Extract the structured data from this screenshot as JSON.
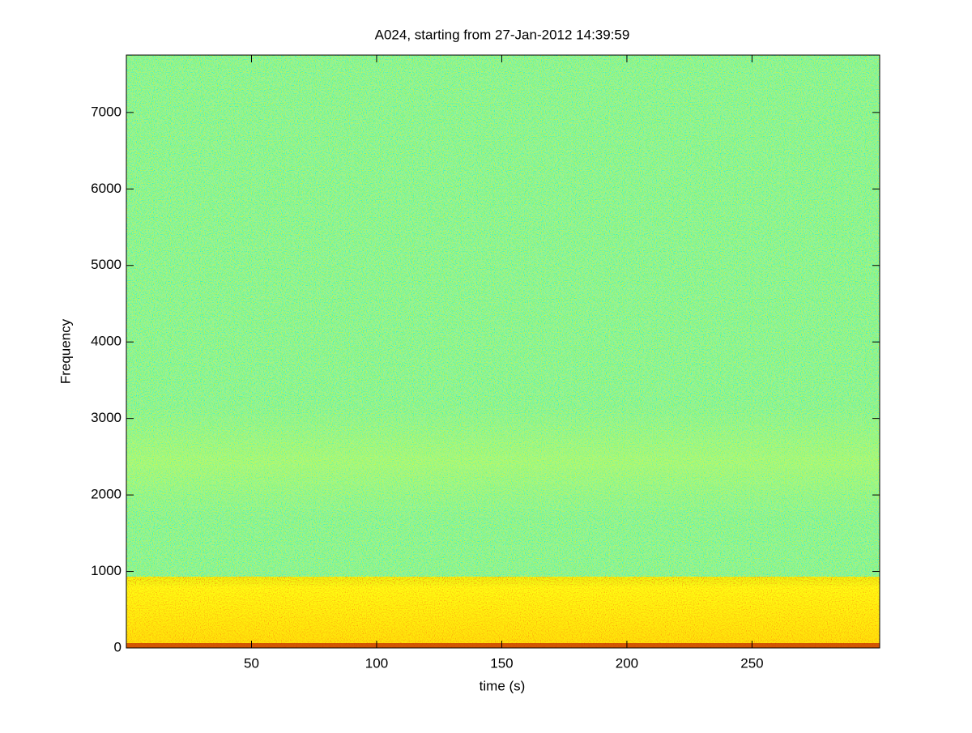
{
  "chart_data": {
    "type": "spectrogram",
    "title": "A024, starting from 27-Jan-2012 14:39:59",
    "xlabel": "time (s)",
    "ylabel": "Frequency",
    "xlim": [
      0,
      301
    ],
    "xticks": [
      50,
      100,
      150,
      200,
      250
    ],
    "ylim": [
      0,
      7750
    ],
    "yticks": [
      0,
      1000,
      2000,
      3000,
      4000,
      5000,
      6000,
      7000
    ]
  }
}
